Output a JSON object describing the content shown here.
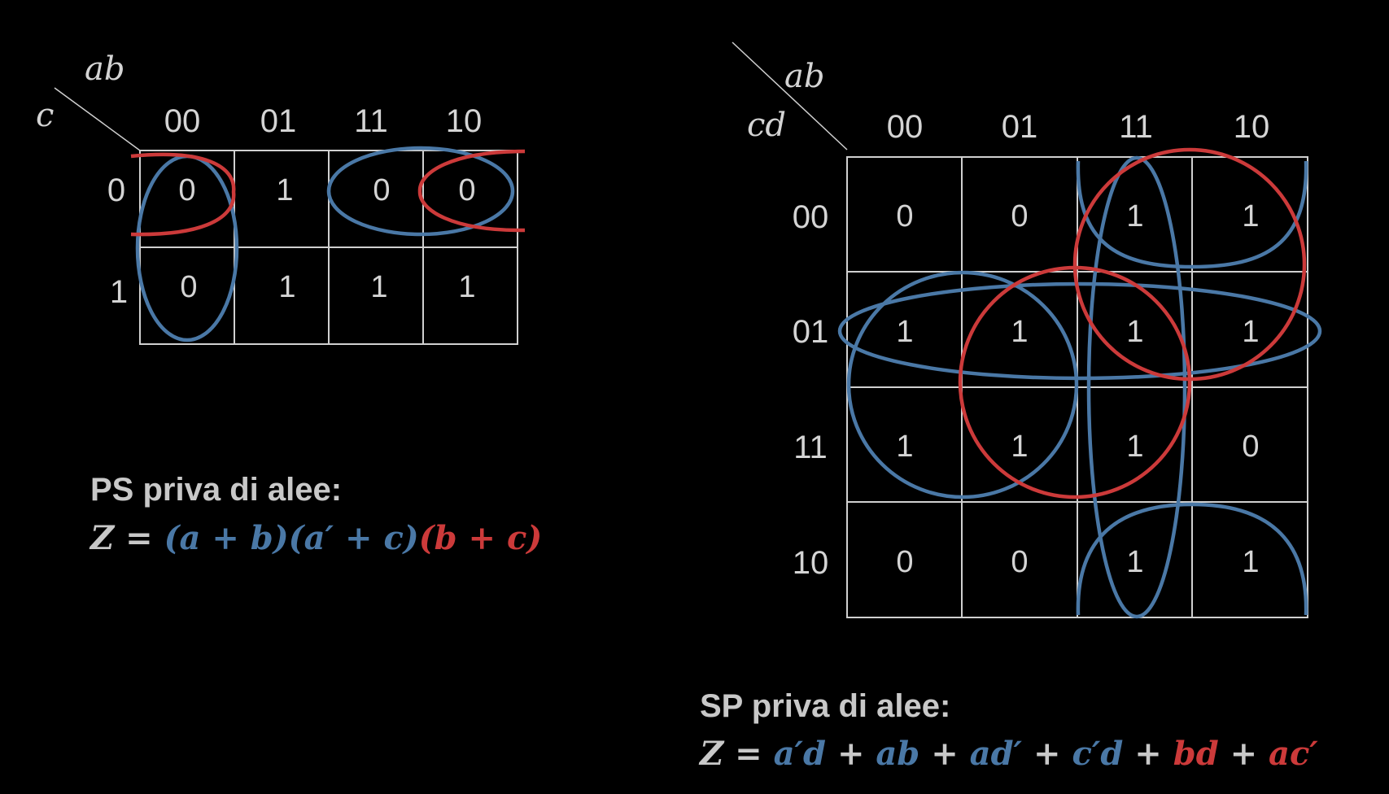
{
  "colors": {
    "blue": "#4a78a6",
    "red": "#cc3a3a",
    "text": "#d4d4d4",
    "grey": "#c8c8c8"
  },
  "left_map": {
    "row_var": "c",
    "col_var": "ab",
    "col_headers": [
      "00",
      "01",
      "11",
      "10"
    ],
    "row_headers": [
      "0",
      "1"
    ],
    "cells": [
      [
        "0",
        "1",
        "0",
        "0"
      ],
      [
        "0",
        "1",
        "1",
        "1"
      ]
    ],
    "caption": "PS priva di alee:",
    "formula": [
      {
        "t": "Z",
        "c": "grey"
      },
      {
        "t": " = ",
        "c": "grey"
      },
      {
        "t": "(a + b)(a′ + c)",
        "c": "blue"
      },
      {
        "t": "(b + c)",
        "c": "red"
      }
    ]
  },
  "right_map": {
    "row_var": "cd",
    "col_var": "ab",
    "col_headers": [
      "00",
      "01",
      "11",
      "10"
    ],
    "row_headers": [
      "00",
      "01",
      "11",
      "10"
    ],
    "cells": [
      [
        "0",
        "0",
        "1",
        "1"
      ],
      [
        "1",
        "1",
        "1",
        "1"
      ],
      [
        "1",
        "1",
        "1",
        "0"
      ],
      [
        "0",
        "0",
        "1",
        "1"
      ]
    ],
    "caption": "SP priva di alee:",
    "formula": [
      {
        "t": "Z",
        "c": "grey"
      },
      {
        "t": " = ",
        "c": "grey"
      },
      {
        "t": "a′d",
        "c": "blue"
      },
      {
        "t": " + ",
        "c": "grey"
      },
      {
        "t": "ab",
        "c": "blue"
      },
      {
        "t": " + ",
        "c": "grey"
      },
      {
        "t": "ad′",
        "c": "blue"
      },
      {
        "t": " + ",
        "c": "grey"
      },
      {
        "t": "c′d",
        "c": "blue"
      },
      {
        "t": " + ",
        "c": "grey"
      },
      {
        "t": "bd",
        "c": "red"
      },
      {
        "t": " + ",
        "c": "grey"
      },
      {
        "t": "ac′",
        "c": "red"
      }
    ]
  }
}
